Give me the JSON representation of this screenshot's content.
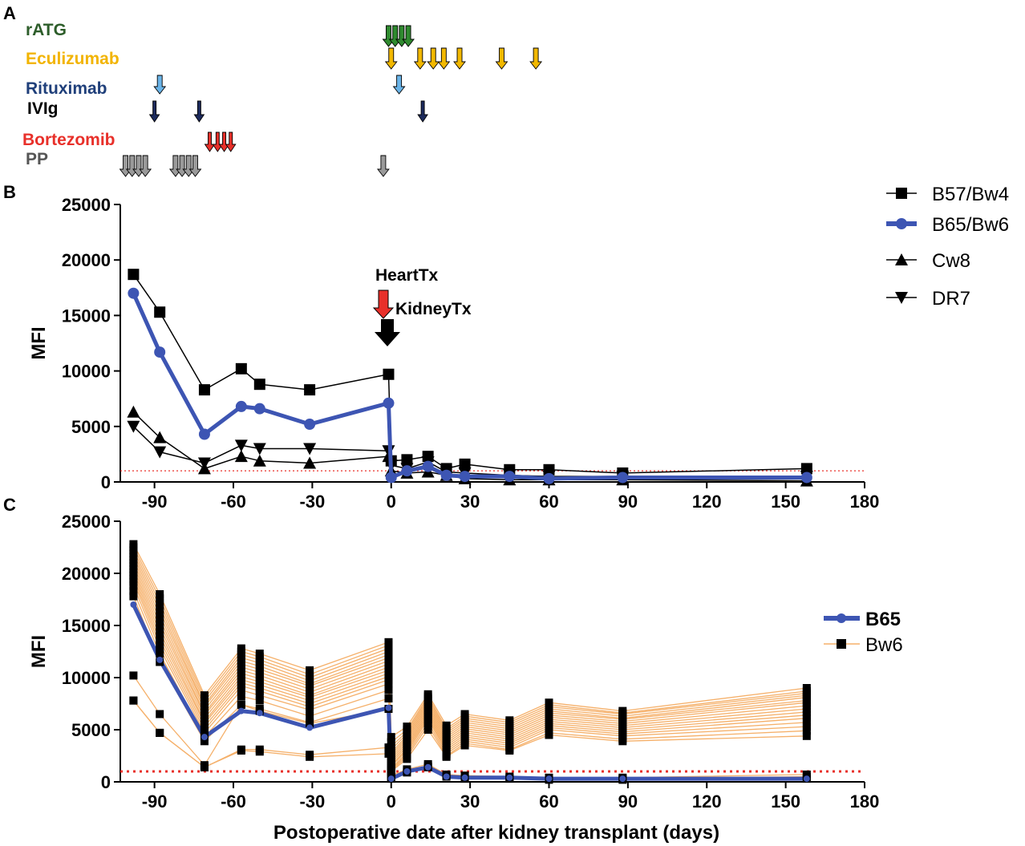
{
  "panel_letters": {
    "a": "A",
    "b": "B",
    "c": "C"
  },
  "colors": {
    "b65": "#3d55b3",
    "bw6": "#f5b06a",
    "black": "#000000",
    "threshold": "#e8302a",
    "rATG": "#2f8a2f",
    "Eculizumab": "#f2b800",
    "Rituximab": "#6ab4e8",
    "IVIg": "#1c2a5c",
    "Bortezomib": "#e8302a",
    "PP": "#9a9a9a"
  },
  "treatments": [
    {
      "name": "rATG",
      "label_color": "#2d5d2a",
      "arrow_color": "#2f8a2f",
      "days": [
        -1,
        1.5,
        4,
        6.5
      ]
    },
    {
      "name": "Eculizumab",
      "label_color": "#f2b400",
      "arrow_color": "#f2b800",
      "days": [
        0,
        11,
        16,
        20,
        26,
        42,
        55
      ]
    },
    {
      "name": "Rituximab",
      "label_color": "#1f3f7a",
      "arrow_color": "#6ab4e8",
      "days": [
        -88,
        3
      ]
    },
    {
      "name": "IVIg",
      "label_color": "#000000",
      "arrow_color": "#1c2a5c",
      "days": [
        -90,
        -73,
        12
      ]
    },
    {
      "name": "Bortezomib",
      "label_color": "#e8302a",
      "arrow_color": "#e8302a",
      "days": [
        -69,
        -66,
        -63.5,
        -61
      ]
    },
    {
      "name": "PP",
      "label_color": "#555555",
      "arrow_color": "#9a9a9a",
      "days": [
        -101,
        -98.5,
        -96,
        -93.5,
        -82,
        -79.5,
        -77,
        -74.5,
        -3
      ]
    }
  ],
  "annotations": {
    "heart_tx": "HeartTx",
    "kidney_tx": "KidneyTx"
  },
  "chart_data": [
    {
      "panel": "B",
      "type": "line",
      "xlabel": "",
      "ylabel": "MFI",
      "xlim": [
        -103,
        180
      ],
      "ylim": [
        0,
        25000
      ],
      "xticks": [
        -90,
        -60,
        -30,
        0,
        30,
        60,
        90,
        120,
        150,
        180
      ],
      "xtick_labels": [
        "-90",
        "-60",
        "-30",
        "0",
        "30",
        "60",
        "90",
        "120",
        "150",
        "180"
      ],
      "yticks": [
        0,
        5000,
        10000,
        15000,
        20000,
        25000
      ],
      "ytick_labels": [
        "0",
        "5000",
        "10000",
        "15000",
        "20000",
        "25000"
      ],
      "threshold": 1000,
      "legend_position": "right",
      "series": [
        {
          "name": "B57/Bw4",
          "marker": "square",
          "x": [
            -98,
            -88,
            -71,
            -57,
            -50,
            -31,
            -1,
            0,
            6,
            14,
            21,
            28,
            45,
            60,
            88,
            158
          ],
          "y": [
            18700,
            15300,
            8300,
            10200,
            8800,
            8300,
            9700,
            1900,
            2000,
            2300,
            1200,
            1600,
            1100,
            1100,
            800,
            1200
          ]
        },
        {
          "name": "B65/Bw6",
          "marker": "circle",
          "x": [
            -98,
            -88,
            -71,
            -57,
            -50,
            -31,
            -1,
            0,
            6,
            14,
            21,
            28,
            45,
            60,
            88,
            158
          ],
          "y": [
            17000,
            11700,
            4300,
            6800,
            6600,
            5200,
            7100,
            400,
            1000,
            1400,
            600,
            500,
            500,
            300,
            400,
            400
          ]
        },
        {
          "name": "Cw8",
          "marker": "triangle-up",
          "x": [
            -98,
            -88,
            -71,
            -57,
            -50,
            -31,
            -1,
            0,
            6,
            14,
            21,
            28,
            45,
            60,
            88,
            158
          ],
          "y": [
            6300,
            4000,
            1200,
            2300,
            1900,
            1700,
            2300,
            1000,
            800,
            900,
            600,
            300,
            200,
            200,
            200,
            100
          ]
        },
        {
          "name": "DR7",
          "marker": "triangle-down",
          "x": [
            -98,
            -88,
            -71,
            -57,
            -50,
            -31,
            -1,
            0,
            6,
            14,
            21,
            28,
            45,
            60,
            88,
            158
          ],
          "y": [
            5000,
            2700,
            1700,
            3300,
            3000,
            3000,
            2800,
            1500,
            1200,
            1800,
            900,
            800,
            600,
            500,
            500,
            500
          ]
        }
      ]
    },
    {
      "panel": "C",
      "type": "line",
      "xlabel": "Postoperative date after kidney transplant (days)",
      "ylabel": "MFI",
      "xlim": [
        -103,
        180
      ],
      "ylim": [
        0,
        25000
      ],
      "xticks": [
        -90,
        -60,
        -30,
        0,
        30,
        60,
        90,
        120,
        150,
        180
      ],
      "xtick_labels": [
        "-90",
        "-60",
        "-30",
        "0",
        "30",
        "60",
        "90",
        "120",
        "150",
        "180"
      ],
      "yticks": [
        0,
        5000,
        10000,
        15000,
        20000,
        25000
      ],
      "ytick_labels": [
        "0",
        "5000",
        "10000",
        "15000",
        "20000",
        "25000"
      ],
      "threshold": 1000,
      "legend_position": "center-right",
      "x": [
        -98,
        -88,
        -71,
        -57,
        -50,
        -31,
        -1,
        0,
        6,
        14,
        21,
        28,
        45,
        60,
        88,
        158
      ],
      "series": [
        {
          "name": "B65",
          "y": [
            17000,
            11700,
            4300,
            6800,
            6600,
            5200,
            7100,
            300,
            1000,
            1400,
            500,
            400,
            400,
            300,
            300,
            300
          ]
        },
        {
          "name": "Bw6",
          "y": [
            22800,
            18000,
            8300,
            12800,
            12300,
            10700,
            13400,
            4300,
            5300,
            8400,
            5400,
            6500,
            5900,
            7600,
            6800,
            9000
          ]
        },
        {
          "name": "Bw6",
          "y": [
            22500,
            17600,
            8000,
            12500,
            12000,
            10300,
            13100,
            3800,
            5000,
            8200,
            5100,
            6300,
            5700,
            7400,
            6600,
            8700
          ]
        },
        {
          "name": "Bw6",
          "y": [
            22200,
            17200,
            7700,
            12200,
            11700,
            10000,
            12800,
            3400,
            4800,
            8000,
            4900,
            6100,
            5500,
            7200,
            6500,
            8500
          ]
        },
        {
          "name": "Bw6",
          "y": [
            21900,
            16800,
            7400,
            11900,
            11400,
            9700,
            12500,
            3100,
            4600,
            7800,
            4700,
            5900,
            5300,
            7000,
            6300,
            8300
          ]
        },
        {
          "name": "Bw6",
          "y": [
            21600,
            16400,
            7200,
            11600,
            11100,
            9400,
            12200,
            2800,
            4400,
            7600,
            4500,
            5700,
            5100,
            6800,
            6100,
            8100
          ]
        },
        {
          "name": "Bw6",
          "y": [
            21300,
            16000,
            6900,
            11300,
            10800,
            9200,
            11900,
            2600,
            4200,
            7400,
            4300,
            5500,
            4900,
            6600,
            6000,
            7800
          ]
        },
        {
          "name": "Bw6",
          "y": [
            21000,
            15600,
            6600,
            11000,
            10500,
            8900,
            11600,
            2400,
            4000,
            7200,
            4100,
            5300,
            4700,
            6400,
            5800,
            7600
          ]
        },
        {
          "name": "Bw6",
          "y": [
            20700,
            15200,
            6400,
            10700,
            10200,
            8600,
            11300,
            2200,
            3800,
            7000,
            3900,
            5100,
            4500,
            6200,
            5600,
            7300
          ]
        },
        {
          "name": "Bw6",
          "y": [
            20400,
            14800,
            6100,
            10400,
            9900,
            8300,
            11000,
            2000,
            3600,
            6800,
            3700,
            4900,
            4300,
            6000,
            5400,
            7000
          ]
        },
        {
          "name": "Bw6",
          "y": [
            20100,
            14400,
            5800,
            10100,
            9600,
            8100,
            10700,
            1800,
            3400,
            6600,
            3500,
            4700,
            4100,
            5800,
            5200,
            6700
          ]
        },
        {
          "name": "Bw6",
          "y": [
            19800,
            14000,
            5600,
            9800,
            9300,
            7800,
            10400,
            1600,
            3200,
            6400,
            3300,
            4500,
            3900,
            5600,
            5000,
            6400
          ]
        },
        {
          "name": "Bw6",
          "y": [
            19500,
            13600,
            5300,
            9500,
            9000,
            7500,
            10100,
            1500,
            3000,
            6200,
            3100,
            4300,
            3700,
            5400,
            4800,
            6100
          ]
        },
        {
          "name": "Bw6",
          "y": [
            19200,
            13200,
            5000,
            9200,
            8700,
            7200,
            9800,
            1300,
            2800,
            6000,
            2900,
            4100,
            3500,
            5200,
            4600,
            5700
          ]
        },
        {
          "name": "Bw6",
          "y": [
            18800,
            12800,
            4700,
            8800,
            8300,
            6900,
            9400,
            1200,
            2600,
            5700,
            2700,
            3900,
            3300,
            5000,
            4400,
            5300
          ]
        },
        {
          "name": "Bw6",
          "y": [
            18300,
            12300,
            4300,
            8200,
            7800,
            6300,
            8800,
            1100,
            2400,
            5400,
            2500,
            3700,
            3100,
            4700,
            4100,
            4900
          ]
        },
        {
          "name": "Bw6",
          "y": [
            17800,
            11500,
            3900,
            7400,
            7000,
            5700,
            8000,
            1000,
            2200,
            5000,
            2400,
            3500,
            3000,
            4500,
            3900,
            4400
          ]
        },
        {
          "name": "Bw6",
          "y": [
            10200,
            6500,
            1600,
            7400,
            6800,
            5600,
            7000,
            600,
            1200,
            1700,
            700,
            600,
            500,
            400,
            400,
            700
          ]
        },
        {
          "name": "Bw6",
          "y": [
            7800,
            4700,
            1400,
            3100,
            3100,
            2600,
            3300,
            400,
            1000,
            1500,
            600,
            400,
            400,
            300,
            300,
            500
          ]
        },
        {
          "name": "Bw6",
          "y": [
            7800,
            4700,
            1400,
            3000,
            2900,
            2400,
            2700,
            300,
            900,
            1400,
            500,
            300,
            300,
            200,
            200,
            300
          ]
        }
      ]
    }
  ]
}
